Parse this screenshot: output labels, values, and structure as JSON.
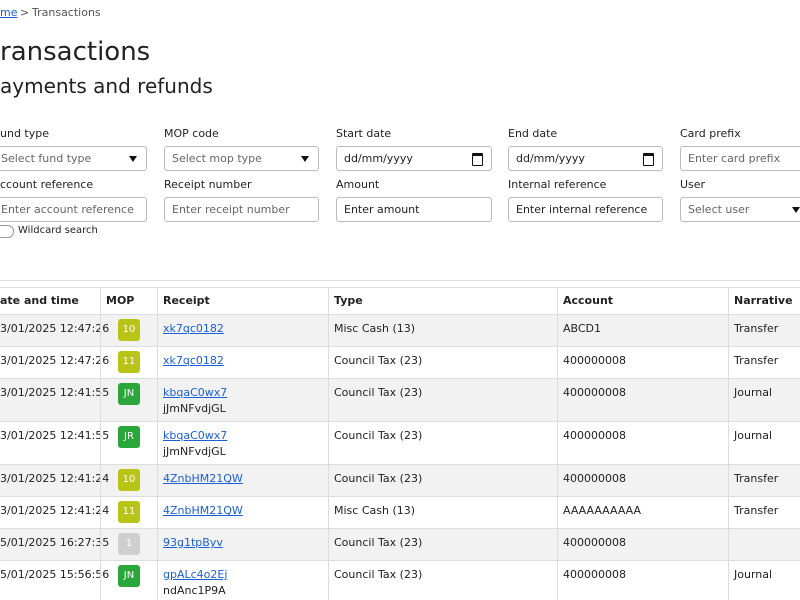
{
  "breadcrumb": {
    "home": "me",
    "separator": ">",
    "current": "Transactions"
  },
  "header": {
    "title": "ransactions",
    "subtitle": "ayments and refunds"
  },
  "filters": [
    {
      "label": "und type",
      "placeholder": "Select fund type"
    },
    {
      "label": "MOP code",
      "placeholder": "Select mop type"
    },
    {
      "label": "Start date",
      "placeholder": "dd/mm/yyyy"
    },
    {
      "label": "End date",
      "placeholder": "dd/mm/yyyy"
    },
    {
      "label": "Card prefix",
      "placeholder": "Enter card prefix"
    },
    {
      "label": "ccount reference",
      "placeholder": "Enter account reference"
    },
    {
      "label": "Receipt number",
      "placeholder": "Enter receipt number"
    },
    {
      "label": "Amount",
      "placeholder": "Enter amount"
    },
    {
      "label": "Internal reference",
      "placeholder": "Enter internal reference"
    },
    {
      "label": "User",
      "placeholder": "Select user"
    }
  ],
  "wildcard": "Wildcard search",
  "table": {
    "columns": [
      "ate and time",
      "MOP",
      "Receipt",
      "Type",
      "Account",
      "Narrative"
    ],
    "rows": [
      {
        "date": "3/01/2025 12:47:26",
        "mop": "10",
        "mop_color": "#b8c416",
        "receipt": "xk7qc0182",
        "reference": null,
        "type": "Misc Cash (13)",
        "account": "ABCD1",
        "narrative": "Transfer"
      },
      {
        "date": "3/01/2025 12:47:26",
        "mop": "11",
        "mop_color": "#b8c416",
        "receipt": "xk7qc0182",
        "reference": null,
        "type": "Council Tax (23)",
        "account": "400000008",
        "narrative": "Transfer"
      },
      {
        "date": "3/01/2025 12:41:55",
        "mop": "JN",
        "mop_color": "#2aa63a",
        "receipt": "kbqaC0wx7",
        "reference": "jJmNFvdjGL",
        "type": "Council Tax (23)",
        "account": "400000008",
        "narrative": "Journal"
      },
      {
        "date": "3/01/2025 12:41:55",
        "mop": "JR",
        "mop_color": "#2aa63a",
        "receipt": "kbqaC0wx7",
        "reference": "jJmNFvdjGL",
        "type": "Council Tax (23)",
        "account": "400000008",
        "narrative": "Journal"
      },
      {
        "date": "3/01/2025 12:41:24",
        "mop": "10",
        "mop_color": "#b8c416",
        "receipt": "4ZnbHM21QW",
        "reference": null,
        "type": "Council Tax (23)",
        "account": "400000008",
        "narrative": "Transfer"
      },
      {
        "date": "3/01/2025 12:41:24",
        "mop": "11",
        "mop_color": "#b8c416",
        "receipt": "4ZnbHM21QW",
        "reference": null,
        "type": "Misc Cash (13)",
        "account": "AAAAAAAAAA",
        "narrative": "Transfer"
      },
      {
        "date": "5/01/2025 16:27:35",
        "mop": "1",
        "mop_color": "#cfcfcf",
        "receipt": "93g1tpByv",
        "reference": null,
        "type": "Council Tax (23)",
        "account": "400000008",
        "narrative": null
      },
      {
        "date": "5/01/2025 15:56:56",
        "mop": "JN",
        "mop_color": "#2aa63a",
        "receipt": "gpALc4o2Ej",
        "reference": "ndAnc1P9A",
        "type": "Council Tax (23)",
        "account": "400000008",
        "narrative": "Journal"
      }
    ]
  }
}
